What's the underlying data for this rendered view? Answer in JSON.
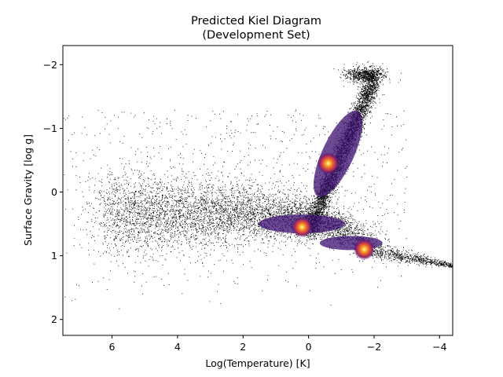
{
  "chart_data": {
    "type": "scatter",
    "title_line1": "Predicted Kiel Diagram",
    "title_line2": "(Development Set)",
    "xlabel": "Log(Temperature) [K]",
    "ylabel": "Surface Gravity [log g]",
    "xlim": [
      7.5,
      -4.4
    ],
    "ylim": [
      2.25,
      -2.3
    ],
    "x_inverted": true,
    "y_inverted": true,
    "grid": false,
    "xticks": [
      {
        "value": 6,
        "label": "6"
      },
      {
        "value": 4,
        "label": "4"
      },
      {
        "value": 2,
        "label": "2"
      },
      {
        "value": 0,
        "label": "0"
      },
      {
        "value": -2,
        "label": "−2"
      },
      {
        "value": -4,
        "label": "−4"
      }
    ],
    "yticks": [
      {
        "value": -2,
        "label": "−2"
      },
      {
        "value": -1,
        "label": "−1"
      },
      {
        "value": 0,
        "label": "0"
      },
      {
        "value": 1,
        "label": "1"
      },
      {
        "value": 2,
        "label": "2"
      }
    ],
    "colormap": "inferno",
    "color_background": "#ffffff",
    "color_points": "#000000",
    "density_hotspots": [
      {
        "x": -0.6,
        "y": -0.45,
        "level": 1.0
      },
      {
        "x": 0.2,
        "y": 0.55,
        "level": 0.85
      },
      {
        "x": -1.7,
        "y": 0.9,
        "level": 0.9
      }
    ],
    "structures": [
      {
        "name": "horizontal-band",
        "x_range": [
          6.5,
          -1.7
        ],
        "y_center": 0.35
      },
      {
        "name": "giant-branch",
        "from": [
          0,
          0.6
        ],
        "to": [
          -2.1,
          -1.85
        ]
      },
      {
        "name": "main-sequence-tail",
        "from": [
          -1.5,
          0.85
        ],
        "to": [
          -4.4,
          1.15
        ]
      }
    ]
  }
}
